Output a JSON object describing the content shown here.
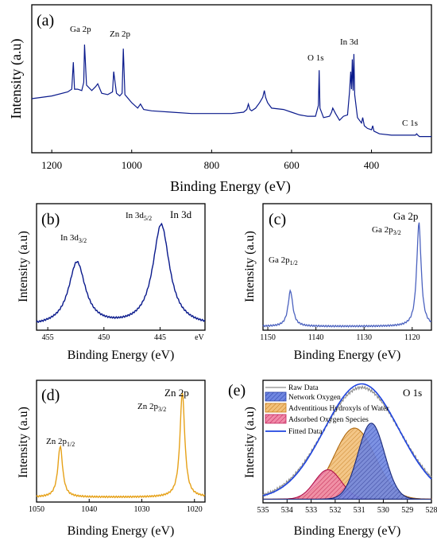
{
  "chart_data": [
    {
      "panel": "(a)",
      "type": "line",
      "xlabel": "Binding Energy (eV)",
      "ylabel": "Intensity (a.u)",
      "xlim": [
        1250,
        250
      ],
      "x_ticks": [
        "1200",
        "1000",
        "800",
        "600",
        "400"
      ],
      "x_tick_values": [
        1200,
        1000,
        800,
        600,
        400
      ],
      "line_color": "#0a1a8c",
      "annotations": [
        {
          "text": "Ga 2p",
          "x": 1125,
          "y": 0.84
        },
        {
          "text": "Zn 2p",
          "x": 1010,
          "y": 0.8
        },
        {
          "text": "O 1s",
          "x": 530,
          "y": 0.64
        },
        {
          "text": "In 3d",
          "x": 442,
          "y": 0.74
        },
        {
          "text": "C 1s",
          "x": 285,
          "y": 0.12
        }
      ],
      "series": [
        {
          "x": [
            1250,
            1200,
            1160,
            1150,
            1146,
            1143,
            1135,
            1125,
            1120,
            1118,
            1113,
            1100,
            1090,
            1085,
            1075,
            1060,
            1048,
            1045,
            1038,
            1030,
            1024,
            1021,
            1017,
            1000,
            985,
            978,
            970,
            950,
            900,
            850,
            800,
            750,
            720,
            712,
            708,
            704,
            700,
            690,
            680,
            672,
            668,
            665,
            660,
            650,
            620,
            600,
            580,
            560,
            540,
            533,
            531,
            529,
            520,
            505,
            500,
            497,
            490,
            480,
            470,
            460,
            455,
            452,
            450,
            448,
            446,
            444,
            442,
            435,
            425,
            422,
            418,
            410,
            400,
            397,
            394,
            380,
            350,
            320,
            300,
            290,
            287,
            284,
            280,
            260,
            250
          ],
          "y": [
            0.4,
            0.42,
            0.45,
            0.47,
            0.67,
            0.47,
            0.47,
            0.46,
            0.52,
            0.8,
            0.5,
            0.46,
            0.49,
            0.51,
            0.44,
            0.43,
            0.45,
            0.6,
            0.44,
            0.42,
            0.44,
            0.77,
            0.43,
            0.37,
            0.33,
            0.36,
            0.32,
            0.31,
            0.3,
            0.29,
            0.29,
            0.29,
            0.3,
            0.32,
            0.36,
            0.32,
            0.31,
            0.33,
            0.37,
            0.41,
            0.46,
            0.41,
            0.37,
            0.33,
            0.32,
            0.3,
            0.28,
            0.27,
            0.27,
            0.35,
            0.61,
            0.33,
            0.26,
            0.27,
            0.3,
            0.33,
            0.29,
            0.24,
            0.27,
            0.28,
            0.45,
            0.6,
            0.47,
            0.69,
            0.46,
            0.73,
            0.43,
            0.26,
            0.22,
            0.26,
            0.2,
            0.18,
            0.17,
            0.2,
            0.16,
            0.14,
            0.13,
            0.13,
            0.13,
            0.13,
            0.14,
            0.13,
            0.12,
            0.12,
            0.12
          ]
        }
      ]
    },
    {
      "panel": "(b)",
      "type": "line",
      "title": "In 3d",
      "xlabel": "Binding Energy (eV)",
      "ylabel": "Intensity (a.u)",
      "xlim": [
        456,
        441
      ],
      "x_ticks": [
        "455",
        "450",
        "445",
        "eV"
      ],
      "x_tick_values": [
        455,
        450,
        445,
        441.5
      ],
      "line_color": "#0a1a8c",
      "annotations": [
        {
          "text": "In 3d",
          "sub": "3/2",
          "x": 452.4,
          "y": 0.52
        },
        {
          "text": "In 3d",
          "sub": "5/2",
          "x": 444.9,
          "y": 0.87
        }
      ],
      "peaks": [
        {
          "center": 452.4,
          "height": 0.5,
          "width": 0.9
        },
        {
          "center": 444.9,
          "height": 0.8,
          "width": 0.9
        }
      ],
      "baseline": 0.03
    },
    {
      "panel": "(c)",
      "type": "line",
      "title": "Ga 2p",
      "xlabel": "Binding Energy (eV)",
      "ylabel": "Intensity (a.u)",
      "xlim": [
        1151,
        1116
      ],
      "x_ticks": [
        "1150",
        "1140",
        "1130",
        "1120"
      ],
      "x_tick_values": [
        1150,
        1140,
        1130,
        1120
      ],
      "line_color": "#4b62bf",
      "annotations": [
        {
          "text": "Ga 2p",
          "sub": "1/2",
          "x": 1145.5,
          "y": 0.33
        },
        {
          "text": "Ga 2p",
          "sub": "3/2",
          "x": 1118.6,
          "y": 0.86
        }
      ],
      "peaks": [
        {
          "center": 1145.3,
          "height": 0.28,
          "width": 0.6
        },
        {
          "center": 1118.6,
          "height": 0.82,
          "width": 0.55
        }
      ],
      "baseline": 0.03
    },
    {
      "panel": "(d)",
      "type": "line",
      "title": "Zn 2p",
      "xlabel": "Binding Energy (eV)",
      "ylabel": "Intensity (a.u)",
      "xlim": [
        1050,
        1018
      ],
      "x_ticks": [
        "1050",
        "1040",
        "1030",
        "1020"
      ],
      "x_tick_values": [
        1050,
        1040,
        1030,
        1020
      ],
      "line_color": "#e6a118",
      "annotations": [
        {
          "text": "Zn 2p",
          "sub": "1/2",
          "x": 1045.5,
          "y": 0.45
        },
        {
          "text": "Zn 2p",
          "sub": "3/2",
          "x": 1022.3,
          "y": 0.88
        }
      ],
      "peaks": [
        {
          "center": 1045.5,
          "height": 0.42,
          "width": 0.55
        },
        {
          "center": 1022.3,
          "height": 0.86,
          "width": 0.55
        }
      ],
      "baseline": 0.04
    },
    {
      "panel": "(e)",
      "type": "area",
      "title": "O 1s",
      "xlabel": "Binding Energy (eV)",
      "ylabel": "Intensity (a.u)",
      "xlim": [
        535,
        528
      ],
      "x_ticks": [
        "535",
        "534",
        "533",
        "532",
        "531",
        "530",
        "529",
        "528"
      ],
      "x_tick_values": [
        535,
        534,
        533,
        532,
        531,
        530,
        529,
        528
      ],
      "legend_placement": "top-left",
      "legend": [
        "Raw Data",
        "Network Oxygen",
        "Adventitious Hydroxyls of Water",
        "Adsorbed Oxygen Species",
        "Fitted Data"
      ],
      "baseline": 0.03,
      "series": [
        {
          "name": "Raw Data",
          "color": "#8a8a8a",
          "center": 530.9,
          "height": 0.94,
          "width": 1.6
        },
        {
          "name": "Network Oxygen",
          "color": "#3355cc",
          "center": 530.5,
          "height": 0.62,
          "width": 0.55
        },
        {
          "name": "Adventitious Hydroxyls of Water",
          "color": "#e8a040",
          "center": 531.2,
          "height": 0.58,
          "width": 0.85
        },
        {
          "name": "Adsorbed Oxygen Species",
          "color": "#e0407a",
          "center": 532.3,
          "height": 0.24,
          "width": 0.55
        },
        {
          "name": "Fitted Data",
          "color": "#1f44e0",
          "center": 530.9,
          "height": 0.96,
          "width": 1.55
        }
      ]
    }
  ]
}
